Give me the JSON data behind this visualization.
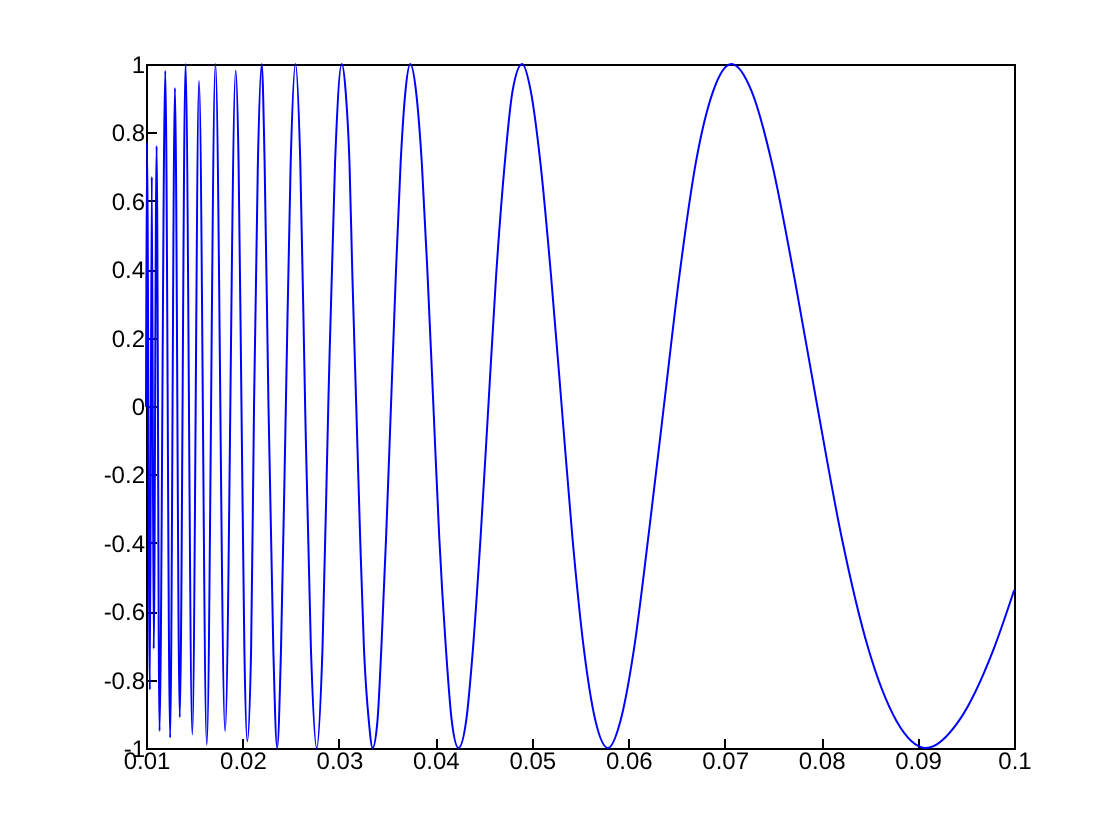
{
  "chart_data": {
    "type": "line",
    "x": [
      0.01,
      0.0101,
      0.0104,
      0.0106,
      0.0108,
      0.0111,
      0.0114,
      0.012,
      0.0125,
      0.013,
      0.0135,
      0.0141,
      0.0148,
      0.0155,
      0.0163,
      0.0172,
      0.0182,
      0.0193,
      0.0196,
      0.0199,
      0.0202,
      0.0205,
      0.0209,
      0.0212,
      0.0216,
      0.022,
      0.0223,
      0.0227,
      0.0232,
      0.0236,
      0.024,
      0.0245,
      0.025,
      0.0255,
      0.026,
      0.0265,
      0.0271,
      0.0277,
      0.0283,
      0.0289,
      0.0296,
      0.0303,
      0.0307,
      0.0311,
      0.0314,
      0.0318,
      0.0322,
      0.0326,
      0.0331,
      0.0335,
      0.034,
      0.0344,
      0.0349,
      0.0354,
      0.0359,
      0.0364,
      0.0369,
      0.0374,
      0.038,
      0.0386,
      0.0392,
      0.0398,
      0.0404,
      0.0411,
      0.0417,
      0.0424,
      0.0432,
      0.0439,
      0.0447,
      0.0455,
      0.0463,
      0.0472,
      0.048,
      0.049,
      0.0499,
      0.0509,
      0.052,
      0.0531,
      0.0542,
      0.0554,
      0.0566,
      0.0579,
      0.0592,
      0.0606,
      0.0621,
      0.0637,
      0.0653,
      0.067,
      0.0688,
      0.0707,
      0.0728,
      0.0749,
      0.0772,
      0.0796,
      0.0821,
      0.0849,
      0.0878,
      0.0909,
      0.0943,
      0.0979,
      0.1
    ],
    "series": [
      {
        "color": "#0000ff",
        "values": [
          0,
          0.77,
          -0.83,
          0.67,
          -0.71,
          0.76,
          -0.95,
          0.98,
          -0.97,
          0.93,
          -0.91,
          1,
          -0.96,
          0.95,
          -0.99,
          1,
          -0.95,
          0.98,
          0.71,
          0,
          -0.71,
          -0.98,
          -0.71,
          0,
          0.71,
          1,
          0.71,
          0,
          -0.71,
          -1,
          -0.71,
          0,
          0.71,
          1,
          0.71,
          0,
          -0.71,
          -1,
          -0.71,
          0,
          0.71,
          1,
          0.92,
          0.71,
          0.38,
          0,
          -0.38,
          -0.71,
          -0.92,
          -1,
          -0.92,
          -0.71,
          -0.38,
          0,
          0.38,
          0.71,
          0.92,
          1,
          0.92,
          0.71,
          0.38,
          0,
          -0.38,
          -0.71,
          -0.92,
          -1,
          -0.92,
          -0.71,
          -0.38,
          0,
          0.38,
          0.71,
          0.92,
          1,
          0.92,
          0.71,
          0.38,
          0,
          -0.38,
          -0.71,
          -0.92,
          -1,
          -0.92,
          -0.71,
          -0.38,
          0,
          0.38,
          0.71,
          0.92,
          1,
          0.92,
          0.71,
          0.38,
          0,
          -0.38,
          -0.71,
          -0.92,
          -1,
          -0.92,
          -0.71,
          -0.54
        ]
      }
    ],
    "xlim": [
      0.01,
      0.1
    ],
    "xticks": [
      0.01,
      0.02,
      0.03,
      0.04,
      0.05,
      0.06,
      0.07,
      0.08,
      0.09,
      0.1
    ],
    "ylim": [
      -1,
      1
    ],
    "yticks": [
      -1,
      -0.8,
      -0.6,
      -0.4,
      -0.2,
      0,
      0.2,
      0.4,
      0.6,
      0.8,
      1
    ]
  }
}
